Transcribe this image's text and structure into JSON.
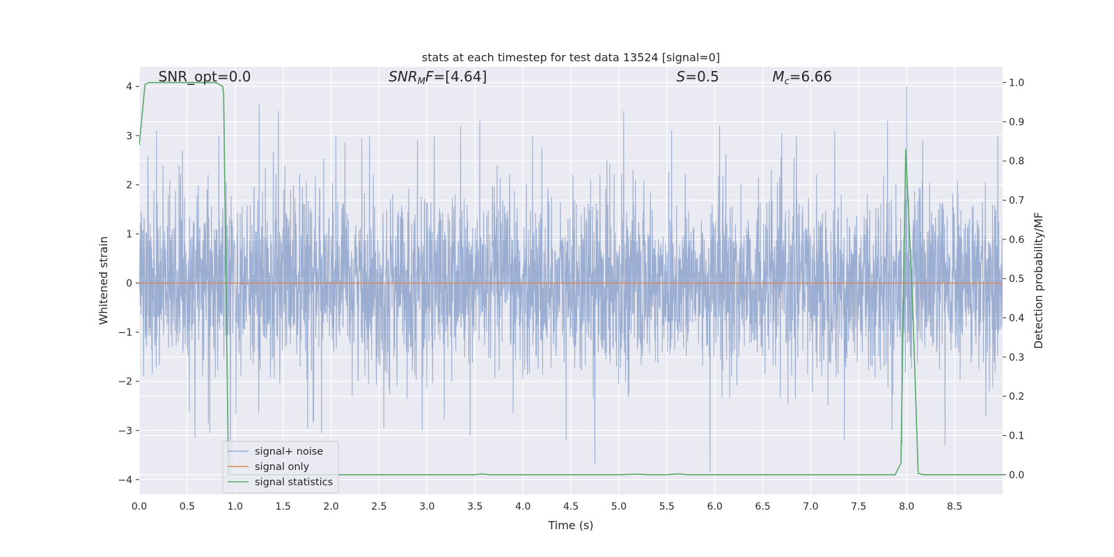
{
  "chart_data": {
    "type": "line",
    "title": "stats at each timestep for test data 13524 [signal=0]",
    "xlabel": "Time (s)",
    "ylabel": "Whitened strain",
    "y2label": "Detection probability/MF",
    "xlim": [
      0,
      9.0
    ],
    "ylim": [
      -4.3,
      4.4
    ],
    "y2lim": [
      -0.05,
      1.04
    ],
    "xticks": [
      0.0,
      0.5,
      1.0,
      1.5,
      2.0,
      2.5,
      3.0,
      3.5,
      4.0,
      4.5,
      5.0,
      5.5,
      6.0,
      6.5,
      7.0,
      7.5,
      8.0,
      8.5
    ],
    "xtick_labels": [
      "0.0",
      "0.5",
      "1.0",
      "1.5",
      "2.0",
      "2.5",
      "3.0",
      "3.5",
      "4.0",
      "4.5",
      "5.0",
      "5.5",
      "6.0",
      "6.5",
      "7.0",
      "7.5",
      "8.0",
      "8.5"
    ],
    "yticks": [
      4,
      3,
      2,
      1,
      0,
      -1,
      -2,
      -3,
      -4
    ],
    "ytick_labels": [
      "4",
      "3",
      "2",
      "1",
      "0",
      "−1",
      "−2",
      "−3",
      "−4"
    ],
    "y2ticks": [
      1.0,
      0.9,
      0.8,
      0.7,
      0.6,
      0.5,
      0.4,
      0.3,
      0.2,
      0.1,
      0.0
    ],
    "y2tick_labels": [
      "1.0",
      "0.9",
      "0.8",
      "0.7",
      "0.6",
      "0.5",
      "0.4",
      "0.3",
      "0.2",
      "0.1",
      "0.0"
    ],
    "annotations": [
      {
        "x": 0.2,
        "y": 4.1,
        "parts": [
          {
            "t": "SNR_opt=0.0"
          }
        ]
      },
      {
        "x": 2.6,
        "y": 4.1,
        "parts": [
          {
            "t": "SNR",
            "i": true
          },
          {
            "t": "M",
            "i": true,
            "sub": true
          },
          {
            "t": "F",
            "i": true
          },
          {
            "t": "=[4.64]"
          }
        ]
      },
      {
        "x": 5.6,
        "y": 4.1,
        "parts": [
          {
            "t": "S",
            "i": true
          },
          {
            "t": "=0.5"
          }
        ]
      },
      {
        "x": 6.6,
        "y": 4.1,
        "parts": [
          {
            "t": "M",
            "i": true
          },
          {
            "t": "c",
            "i": true,
            "sub": true
          },
          {
            "t": "=6.66"
          }
        ]
      }
    ],
    "series": [
      {
        "name": "signal+ noise",
        "axis": "left",
        "style": "noise",
        "color": "#4c72b0",
        "range_x": [
          0,
          9.0
        ],
        "band_sigma": 0.88,
        "peaks": [
          {
            "x": 0.09,
            "y": 2.6
          },
          {
            "x": 0.18,
            "y": 3.1
          },
          {
            "x": 0.45,
            "y": 2.7
          },
          {
            "x": 0.72,
            "y": 2.8
          },
          {
            "x": 0.83,
            "y": 3.0
          },
          {
            "x": 1.25,
            "y": 3.65
          },
          {
            "x": 1.45,
            "y": 3.5
          },
          {
            "x": 2.05,
            "y": 3.0
          },
          {
            "x": 2.4,
            "y": 3.0
          },
          {
            "x": 2.9,
            "y": 2.9
          },
          {
            "x": 3.35,
            "y": 3.2
          },
          {
            "x": 3.55,
            "y": 3.3
          },
          {
            "x": 4.1,
            "y": 3.0
          },
          {
            "x": 4.75,
            "y": 3.3
          },
          {
            "x": 5.05,
            "y": 3.5
          },
          {
            "x": 5.55,
            "y": 3.1
          },
          {
            "x": 6.05,
            "y": 3.2
          },
          {
            "x": 6.85,
            "y": 3.0
          },
          {
            "x": 7.25,
            "y": 3.1
          },
          {
            "x": 7.8,
            "y": 3.3
          },
          {
            "x": 8.0,
            "y": 4.0
          },
          {
            "x": 8.4,
            "y": 3.2
          },
          {
            "x": 8.95,
            "y": 3.0
          },
          {
            "x": 0.58,
            "y": -3.15
          },
          {
            "x": 0.72,
            "y": -2.85
          },
          {
            "x": 0.95,
            "y": -3.85
          },
          {
            "x": 1.9,
            "y": -3.05
          },
          {
            "x": 2.55,
            "y": -2.95
          },
          {
            "x": 2.95,
            "y": -3.0
          },
          {
            "x": 3.45,
            "y": -3.1
          },
          {
            "x": 4.45,
            "y": -3.2
          },
          {
            "x": 4.75,
            "y": -3.7
          },
          {
            "x": 5.95,
            "y": -3.85
          },
          {
            "x": 7.35,
            "y": -3.2
          },
          {
            "x": 7.95,
            "y": -3.3
          },
          {
            "x": 8.4,
            "y": -3.3
          }
        ]
      },
      {
        "name": "signal only",
        "axis": "left",
        "style": "line",
        "color": "#dd8452",
        "x": [
          0,
          9.0
        ],
        "y": [
          0,
          0
        ]
      },
      {
        "name": "signal statistics",
        "axis": "right",
        "style": "line",
        "color": "#55a868",
        "x": [
          0.0,
          0.06,
          0.1,
          0.5,
          0.8,
          0.87,
          0.88,
          0.93,
          1.0,
          3.5,
          3.57,
          3.65,
          5.0,
          5.2,
          5.3,
          5.5,
          5.62,
          5.72,
          7.88,
          7.94,
          7.99,
          8.06,
          8.12,
          8.18,
          9.0
        ],
        "y": [
          0.84,
          0.995,
          1.0,
          1.0,
          1.0,
          0.99,
          0.97,
          0.0,
          0.0,
          0.0,
          0.002,
          0.0,
          0.0,
          0.0015,
          0.0,
          0.0,
          0.002,
          0.0,
          0.0,
          0.03,
          0.83,
          0.45,
          0.003,
          0.0,
          0.0
        ]
      }
    ],
    "legend": {
      "position": "lower-left",
      "entries": [
        "signal+ noise",
        "signal only",
        "signal statistics"
      ]
    },
    "grid": true
  }
}
